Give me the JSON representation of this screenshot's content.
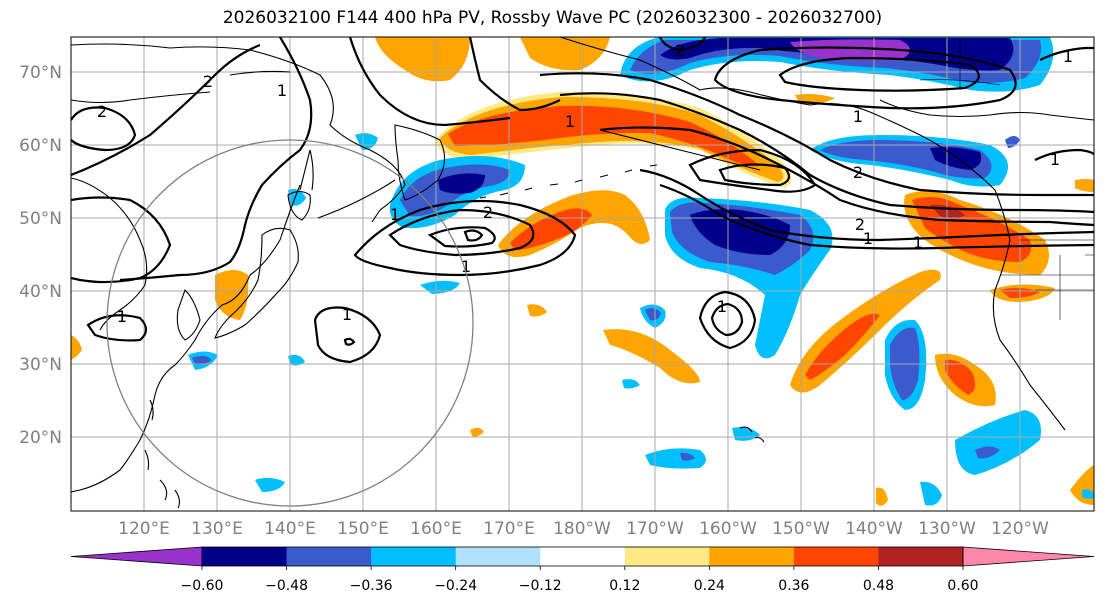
{
  "title": "2026032100 F144 400 hPa PV, Rossby Wave PC (2026032300 - 2026032700)",
  "lat_labels": [
    "70°N",
    "60°N",
    "50°N",
    "40°N",
    "30°N",
    "20°N"
  ],
  "lon_labels": [
    "120°E",
    "130°E",
    "140°E",
    "150°E",
    "160°E",
    "170°E",
    "180°W",
    "170°W",
    "160°W",
    "150°W",
    "140°W",
    "130°W",
    "120°W"
  ],
  "colorbar": {
    "ticks": [
      "−0.60",
      "−0.48",
      "−0.36",
      "−0.24",
      "−0.12",
      "0.12",
      "0.24",
      "0.36",
      "0.48",
      "0.60"
    ],
    "colors": [
      "#9932cc",
      "#00008b",
      "#3a5acd",
      "#00bfff",
      "#b0e2ff",
      "#ffffff",
      "#ffe984",
      "#ffa500",
      "#ff4500",
      "#b22222",
      "#ff88aa"
    ]
  },
  "contour_labels": [
    "2",
    "1",
    "2",
    "1",
    "1",
    "1",
    "2",
    "1",
    "1",
    "2",
    "2",
    "1",
    "1",
    "1",
    "1",
    "1",
    "2",
    "1"
  ],
  "colors": {
    "grid": "#a8a8a8",
    "circle": "#808080"
  }
}
